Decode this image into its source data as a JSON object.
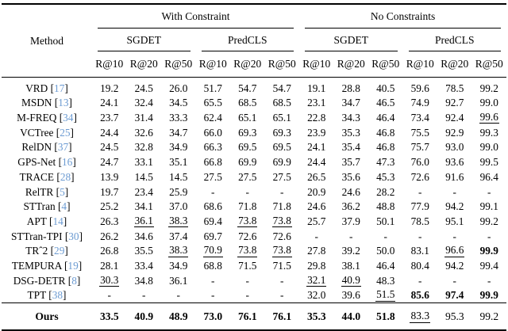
{
  "colors": {
    "citation": "#6c9bd2",
    "text": "#000000",
    "background": "#ffffff"
  },
  "table": {
    "header": {
      "method": "Method",
      "groups": [
        {
          "label": "With Constraint"
        },
        {
          "label": "No Constraints"
        }
      ],
      "tasks": [
        "SGDET",
        "PredCLS",
        "SGDET",
        "PredCLS"
      ],
      "metrics": [
        "R@10",
        "R@20",
        "R@50",
        "R@10",
        "R@20",
        "R@50",
        "R@10",
        "R@20",
        "R@50",
        "R@10",
        "R@20",
        "R@50"
      ]
    },
    "rows": [
      {
        "method": "VRD",
        "cite": "17",
        "cells": [
          "19.2",
          "24.5",
          "26.0",
          "51.7",
          "54.7",
          "54.7",
          "19.1",
          "28.8",
          "40.5",
          "59.6",
          "78.5",
          "99.2"
        ]
      },
      {
        "method": "MSDN",
        "cite": "13",
        "cells": [
          "24.1",
          "32.4",
          "34.5",
          "65.5",
          "68.5",
          "68.5",
          "23.1",
          "34.7",
          "46.5",
          "74.9",
          "92.7",
          "99.0"
        ]
      },
      {
        "method": "M-FREQ",
        "cite": "34",
        "cells": [
          "23.7",
          "31.4",
          "33.3",
          "62.4",
          "65.1",
          "65.1",
          "22.8",
          "34.3",
          "46.4",
          "73.4",
          "92.4",
          "99.6|u"
        ]
      },
      {
        "method": "VCTree",
        "cite": "25",
        "cells": [
          "24.4",
          "32.6",
          "34.7",
          "66.0",
          "69.3",
          "69.3",
          "23.9",
          "35.3",
          "46.8",
          "75.5",
          "92.9",
          "99.3"
        ]
      },
      {
        "method": "RelDN",
        "cite": "37",
        "cells": [
          "24.5",
          "32.8",
          "34.9",
          "66.3",
          "69.5",
          "69.5",
          "24.1",
          "35.4",
          "46.8",
          "75.7",
          "93.0",
          "99.0"
        ]
      },
      {
        "method": "GPS-Net",
        "cite": "16",
        "cells": [
          "24.7",
          "33.1",
          "35.1",
          "66.8",
          "69.9",
          "69.9",
          "24.4",
          "35.7",
          "47.3",
          "76.0",
          "93.6",
          "99.5"
        ]
      },
      {
        "method": "TRACE",
        "cite": "28",
        "cells": [
          "13.9",
          "14.5",
          "14.5",
          "27.5",
          "27.5",
          "27.5",
          "26.5",
          "35.6",
          "45.3",
          "72.6",
          "91.6",
          "96.4"
        ]
      },
      {
        "method": "RelTR",
        "cite": "5",
        "cells": [
          "19.7",
          "23.4",
          "25.9",
          "-",
          "-",
          "-",
          "20.9",
          "24.6",
          "28.2",
          "-",
          "-",
          "-"
        ]
      },
      {
        "method": "STTran",
        "cite": "4",
        "cells": [
          "25.2",
          "34.1",
          "37.0",
          "68.6",
          "71.8",
          "71.8",
          "24.6",
          "36.2",
          "48.8",
          "77.9",
          "94.2",
          "99.1"
        ]
      },
      {
        "method": "APT",
        "cite": "14",
        "cells": [
          "26.3",
          "36.1|u",
          "38.3|u",
          "69.4",
          "73.8|u",
          "73.8|u",
          "25.7",
          "37.9",
          "50.1",
          "78.5",
          "95.1",
          "99.2"
        ]
      },
      {
        "method": "STTran-TPI",
        "cite": "30",
        "cells": [
          "26.2",
          "34.6",
          "37.4",
          "69.7",
          "72.6",
          "72.6",
          "-",
          "-",
          "-",
          "-",
          "-",
          "-"
        ]
      },
      {
        "method": "TRˆ2",
        "cite": "29",
        "cells": [
          "26.8",
          "35.5",
          "38.3|u",
          "70.9|u",
          "73.8|u",
          "73.8|u",
          "27.8",
          "39.2",
          "50.0",
          "83.1",
          "96.6|u",
          "99.9|b"
        ]
      },
      {
        "method": "TEMPURA",
        "cite": "19",
        "cells": [
          "28.1",
          "33.4",
          "34.9",
          "68.8",
          "71.5",
          "71.5",
          "29.8",
          "38.1",
          "46.4",
          "80.4",
          "94.2",
          "99.4"
        ]
      },
      {
        "method": "DSG-DETR",
        "cite": "8",
        "cells": [
          "30.3|u",
          "34.8",
          "36.1",
          "-",
          "-",
          "-",
          "32.1|u",
          "40.9|u",
          "48.3",
          "-",
          "-",
          "-"
        ]
      },
      {
        "method": "TPT",
        "cite": "38",
        "cells": [
          "-",
          "-",
          "-",
          "-",
          "-",
          "-",
          "32.0",
          "39.6",
          "51.5|u",
          "85.6|b",
          "97.4|b",
          "99.9|b"
        ]
      },
      {
        "method": "Ours",
        "cite": null,
        "cells": [
          "33.5|b",
          "40.9|b",
          "48.9|b",
          "73.0|b",
          "76.1|b",
          "76.1|b",
          "35.3|b",
          "44.0|b",
          "51.8|b",
          "83.3|u",
          "95.3",
          "99.2"
        ]
      }
    ]
  }
}
